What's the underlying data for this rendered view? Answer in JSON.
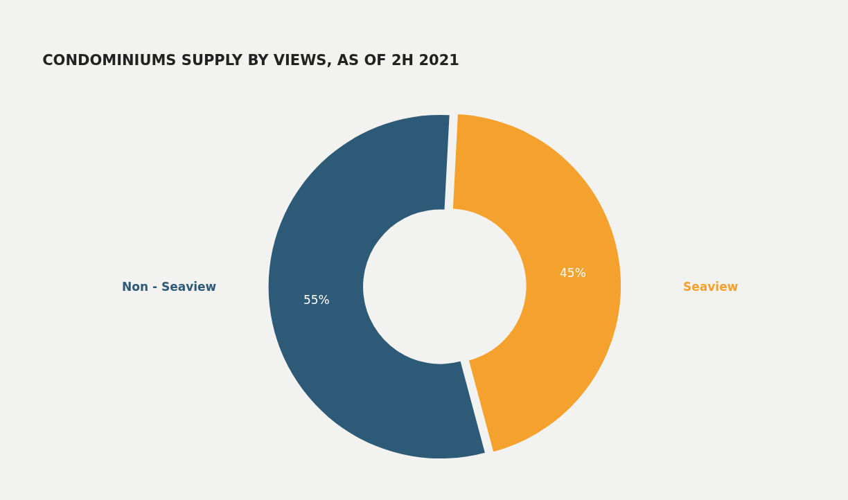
{
  "chart_data": {
    "type": "donut",
    "title": "CONDOMINIUMS SUPPLY BY VIEWS, AS OF 2H 2021",
    "categories": [
      "Seaview",
      "Non - Seaview"
    ],
    "values": [
      45,
      55
    ],
    "colors": [
      "#f4a12e",
      "#2d5a76"
    ],
    "value_labels": [
      "45%",
      "55%"
    ],
    "legend": false
  }
}
